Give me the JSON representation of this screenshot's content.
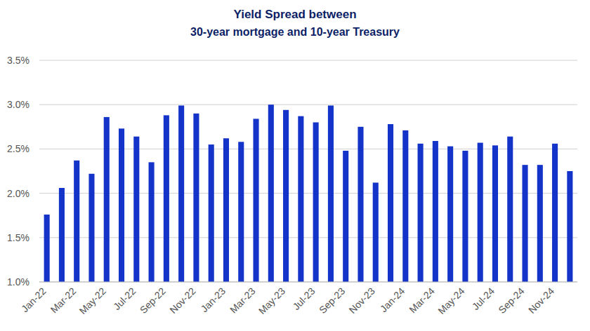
{
  "chart_data": {
    "type": "bar",
    "title": "Yield Spread between",
    "subtitle": "30-year mortgage and 10-year Treasury",
    "categories": [
      "Jan-22",
      null,
      "Mar-22",
      null,
      "May-22",
      null,
      "Jul-22",
      null,
      "Sep-22",
      null,
      "Nov-22",
      null,
      "Jan-23",
      null,
      "Mar-23",
      null,
      "May-23",
      null,
      "Jul-23",
      null,
      "Sep-23",
      null,
      "Nov-23",
      null,
      "Jan-24",
      null,
      "Mar-24",
      null,
      "May-24",
      null,
      "Jul-24",
      null,
      "Sep-24",
      null,
      "Nov-24",
      null
    ],
    "values": [
      1.76,
      2.06,
      2.37,
      2.22,
      2.86,
      2.73,
      2.64,
      2.35,
      2.88,
      2.99,
      2.9,
      2.55,
      2.62,
      2.58,
      2.84,
      3.0,
      2.94,
      2.87,
      2.8,
      2.99,
      2.48,
      2.75,
      2.12,
      2.78,
      2.71,
      2.56,
      2.59,
      2.53,
      2.48,
      2.57,
      2.54,
      2.64,
      2.32,
      2.32,
      2.56,
      2.25
    ],
    "color": "#1433c8",
    "ylim": [
      1.0,
      3.5
    ],
    "yticks": [
      {
        "value": 1.0,
        "label": "1.0%"
      },
      {
        "value": 1.5,
        "label": "1.5%"
      },
      {
        "value": 2.0,
        "label": "2.0%"
      },
      {
        "value": 2.5,
        "label": "2.5%"
      },
      {
        "value": 3.0,
        "label": "3.0%"
      },
      {
        "value": 3.5,
        "label": "3.5%"
      }
    ],
    "grid": true
  }
}
